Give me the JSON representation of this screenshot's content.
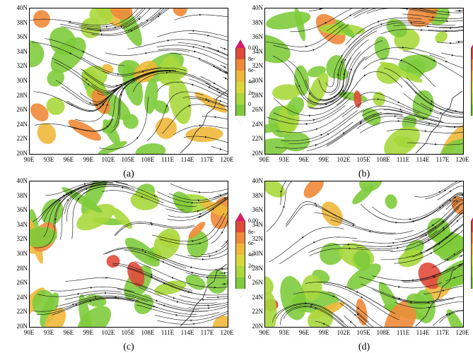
{
  "panels": [
    {
      "caption": "(a)"
    },
    {
      "caption": "(b)"
    },
    {
      "caption": "(c)"
    },
    {
      "caption": "(d)"
    }
  ],
  "axes": {
    "lat_labels": [
      "40N",
      "38N",
      "36N",
      "34N",
      "32N",
      "30N",
      "28N",
      "26N",
      "24N",
      "22N",
      "20N"
    ],
    "lon_labels": [
      "90E",
      "93E",
      "96E",
      "99E",
      "102E",
      "105E",
      "108E",
      "111E",
      "114E",
      "117E",
      "120E"
    ]
  },
  "colorbar": {
    "labels": [
      "0.00",
      "8e-",
      "6e-",
      "4e-",
      "2e-",
      "0"
    ],
    "colors": [
      "#d0206a",
      "#e04a3a",
      "#ef8a3a",
      "#f0b83a",
      "#d8d83a",
      "#a8d83c",
      "#7ecb3b"
    ]
  }
}
